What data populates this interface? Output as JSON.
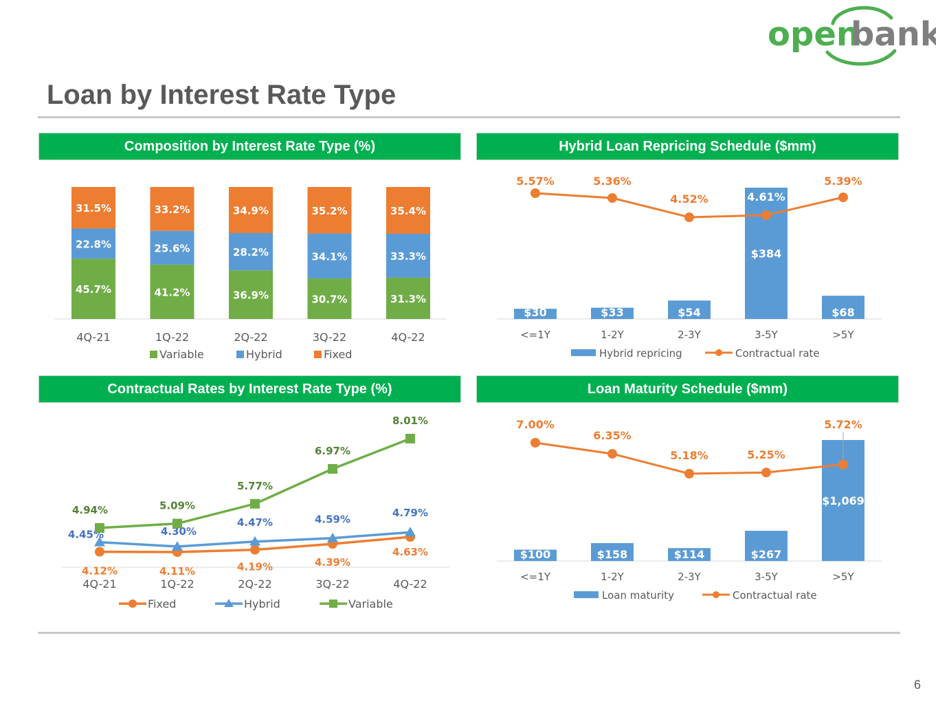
{
  "brand": {
    "logo_open": "open",
    "logo_bank": "bank",
    "green": "#4caf50",
    "gray": "#7f7f7f"
  },
  "page": {
    "title": "Loan by Interest Rate Type",
    "page_number": "6"
  },
  "colors": {
    "header_bg": "#00b050",
    "variable": "#70ad47",
    "hybrid": "#5b9bd5",
    "fixed": "#ed7d31",
    "hybrid_label": "#4472c4",
    "variable_label": "#548235"
  },
  "panels": {
    "composition": {
      "title": "Composition by Interest Rate Type (%)"
    },
    "repricing": {
      "title": "Hybrid Loan Repricing Schedule ($mm)"
    },
    "contractual": {
      "title": "Contractual Rates by Interest Rate Type (%)"
    },
    "maturity": {
      "title": "Loan Maturity Schedule ($mm)"
    }
  },
  "chart_data": [
    {
      "id": "composition",
      "type": "bar",
      "stacked": true,
      "categories": [
        "4Q-21",
        "1Q-22",
        "2Q-22",
        "3Q-22",
        "4Q-22"
      ],
      "series": [
        {
          "name": "Variable",
          "values": [
            45.7,
            41.2,
            36.9,
            30.7,
            31.3
          ],
          "labels": [
            "45.7%",
            "41.2%",
            "36.9%",
            "30.7%",
            "31.3%"
          ],
          "color": "#70ad47"
        },
        {
          "name": "Hybrid",
          "values": [
            22.8,
            25.6,
            28.2,
            34.1,
            33.3
          ],
          "labels": [
            "22.8%",
            "25.6%",
            "28.2%",
            "34.1%",
            "33.3%"
          ],
          "color": "#5b9bd5"
        },
        {
          "name": "Fixed",
          "values": [
            31.5,
            33.2,
            34.9,
            35.2,
            35.4
          ],
          "labels": [
            "31.5%",
            "33.2%",
            "34.9%",
            "35.2%",
            "35.4%"
          ],
          "color": "#ed7d31"
        }
      ],
      "ylim": [
        0,
        100
      ],
      "legend": "bottom"
    },
    {
      "id": "repricing",
      "type": "bar",
      "categories": [
        "<=1Y",
        "1-2Y",
        "2-3Y",
        "3-5Y",
        ">5Y"
      ],
      "bars": {
        "name": "Hybrid repricing",
        "values": [
          30,
          33,
          54,
          384,
          68
        ],
        "labels": [
          "$30",
          "$33",
          "$54",
          "$384",
          "$68"
        ],
        "color": "#5b9bd5"
      },
      "line": {
        "name": "Contractual rate",
        "values": [
          5.57,
          5.36,
          4.52,
          4.61,
          5.39
        ],
        "labels": [
          "5.57%",
          "5.36%",
          "4.52%",
          "4.61%",
          "5.39%"
        ],
        "color": "#ed7d31"
      },
      "legend": "bottom"
    },
    {
      "id": "contractual",
      "type": "line",
      "categories": [
        "4Q-21",
        "1Q-22",
        "2Q-22",
        "3Q-22",
        "4Q-22"
      ],
      "series": [
        {
          "name": "Fixed",
          "values": [
            4.12,
            4.11,
            4.19,
            4.39,
            4.63
          ],
          "labels": [
            "4.12%",
            "4.11%",
            "4.19%",
            "4.39%",
            "4.63%"
          ],
          "color": "#ed7d31",
          "label_color": "#ed7d31",
          "marker": "circle"
        },
        {
          "name": "Hybrid",
          "values": [
            4.45,
            4.3,
            4.47,
            4.59,
            4.79
          ],
          "labels": [
            "4.45%",
            "4.30%",
            "4.47%",
            "4.59%",
            "4.79%"
          ],
          "color": "#5b9bd5",
          "label_color": "#4472c4",
          "marker": "triangle"
        },
        {
          "name": "Variable",
          "values": [
            4.94,
            5.09,
            5.77,
            6.97,
            8.01
          ],
          "labels": [
            "4.94%",
            "5.09%",
            "5.77%",
            "6.97%",
            "8.01%"
          ],
          "color": "#70ad47",
          "label_color": "#548235",
          "marker": "square"
        }
      ],
      "legend": "bottom"
    },
    {
      "id": "maturity",
      "type": "bar",
      "categories": [
        "<=1Y",
        "1-2Y",
        "2-3Y",
        "3-5Y",
        ">5Y"
      ],
      "bars": {
        "name": "Loan maturity",
        "values": [
          100,
          158,
          114,
          267,
          1069
        ],
        "labels": [
          "$100",
          "$158",
          "$114",
          "$267",
          "$1,069"
        ],
        "color": "#5b9bd5"
      },
      "line": {
        "name": "Contractual rate",
        "values": [
          7.0,
          6.35,
          5.18,
          5.25,
          5.72
        ],
        "labels": [
          "7.00%",
          "6.35%",
          "5.18%",
          "5.25%",
          "5.72%"
        ],
        "color": "#ed7d31"
      },
      "legend": "bottom"
    }
  ]
}
